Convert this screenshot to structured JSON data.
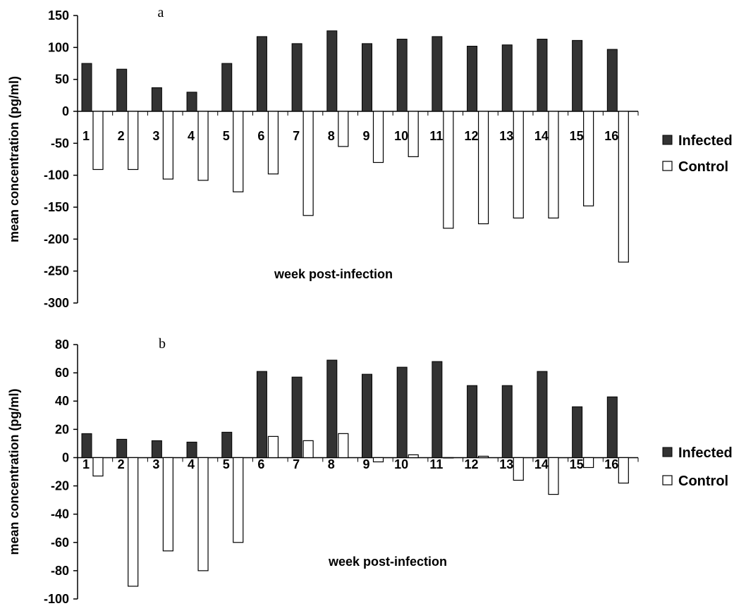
{
  "colors": {
    "infected": "#333333",
    "control": "#ffffff",
    "stroke": "#000000"
  },
  "chart_data": [
    {
      "type": "bar",
      "panel_label": "a",
      "xlabel": "week post-infection",
      "ylabel": "mean concentration (pg/ml)",
      "ylim": [
        -300,
        150
      ],
      "yticks": [
        150,
        100,
        50,
        0,
        -50,
        -100,
        -150,
        -200,
        -250,
        -300
      ],
      "categories": [
        "1",
        "2",
        "3",
        "4",
        "5",
        "6",
        "7",
        "8",
        "9",
        "10",
        "11",
        "12",
        "13",
        "14",
        "15",
        "16"
      ],
      "series": [
        {
          "name": "Infected",
          "values": [
            75,
            66,
            37,
            30,
            75,
            117,
            106,
            126,
            106,
            113,
            117,
            102,
            104,
            113,
            111,
            97
          ]
        },
        {
          "name": "Control",
          "values": [
            -91,
            -91,
            -106,
            -108,
            -126,
            -98,
            -163,
            -55,
            -80,
            -71,
            -183,
            -176,
            -167,
            -167,
            -148,
            -236
          ]
        }
      ],
      "legend": "right"
    },
    {
      "type": "bar",
      "panel_label": "b",
      "xlabel": "week post-infection",
      "ylabel": "mean concentration (pg/ml)",
      "ylim": [
        -100,
        80
      ],
      "yticks": [
        80,
        60,
        40,
        20,
        0,
        -20,
        -40,
        -60,
        -80,
        -100
      ],
      "categories": [
        "1",
        "2",
        "3",
        "4",
        "5",
        "6",
        "7",
        "8",
        "9",
        "10",
        "11",
        "12",
        "13",
        "14",
        "15",
        "16"
      ],
      "series": [
        {
          "name": "Infected",
          "values": [
            17,
            13,
            12,
            11,
            18,
            61,
            57,
            69,
            59,
            64,
            68,
            51,
            51,
            61,
            36,
            43
          ]
        },
        {
          "name": "Control",
          "values": [
            -13,
            -91,
            -66,
            -80,
            -60,
            15,
            12,
            17,
            -3,
            2,
            0,
            1,
            -16,
            -26,
            -7,
            -18
          ]
        }
      ],
      "legend": "right"
    }
  ]
}
